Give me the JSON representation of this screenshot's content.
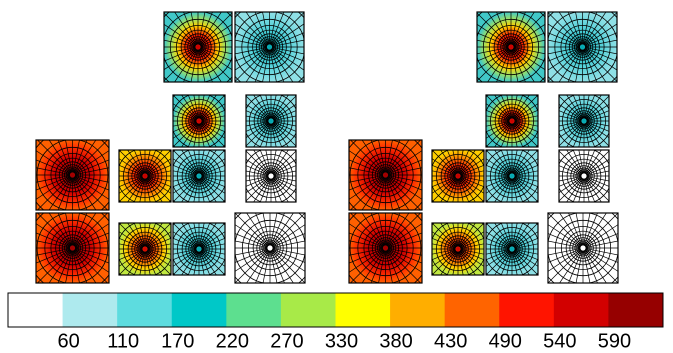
{
  "colorbar": {
    "colors": [
      "#ffffff",
      "#aeeaee",
      "#5ddcdf",
      "#00c8c8",
      "#5ddf8f",
      "#a8ea48",
      "#ffff00",
      "#ffae00",
      "#ff6400",
      "#ff1400",
      "#d20000",
      "#960000"
    ],
    "ticks": [
      60,
      110,
      170,
      220,
      270,
      330,
      380,
      430,
      490,
      540,
      590
    ]
  }
}
